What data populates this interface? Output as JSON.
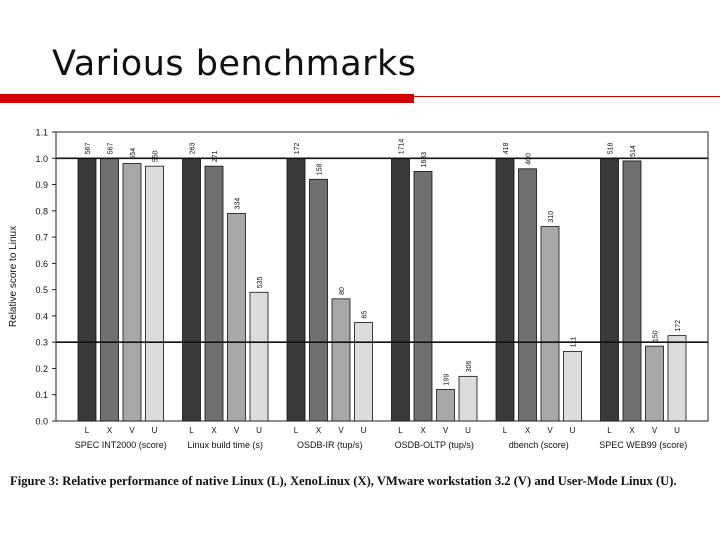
{
  "slide": {
    "title": "Various benchmarks",
    "accent_color": "#d40000"
  },
  "caption": {
    "label": "Figure 3:",
    "text": "Relative performance of native Linux (L), XenoLinux (X), VMware workstation 3.2 (V) and User-Mode Linux (U)."
  },
  "chart_data": {
    "type": "bar",
    "ylabel": "Relative score to Linux",
    "ylim": [
      0,
      1.1
    ],
    "yticks": [
      "0.0",
      "0.1",
      "0.2",
      "0.3",
      "0.4",
      "0.5",
      "0.6",
      "0.7",
      "0.8",
      "0.9",
      "1.0",
      "1.1"
    ],
    "series_letters": [
      "L",
      "X",
      "V",
      "U"
    ],
    "series_colors": [
      "#3a3a3a",
      "#707070",
      "#a8a8a8",
      "#dcdcdc"
    ],
    "reference_lines": [
      1.0,
      0.3
    ],
    "groups": [
      {
        "category": "SPEC INT2000 (score)",
        "values": [
          1.0,
          1.0,
          0.98,
          0.97
        ],
        "labels": [
          "567",
          "567",
          "554",
          "550"
        ]
      },
      {
        "category": "Linux build time (s)",
        "values": [
          1.0,
          0.97,
          0.79,
          0.49
        ],
        "labels": [
          "263",
          "271",
          "334",
          "535"
        ]
      },
      {
        "category": "OSDB-IR (tup/s)",
        "values": [
          1.0,
          0.92,
          0.465,
          0.375
        ],
        "labels": [
          "172",
          "158",
          "80",
          "65"
        ]
      },
      {
        "category": "OSDB-OLTP (tup/s)",
        "values": [
          1.0,
          0.95,
          0.12,
          0.17
        ],
        "labels": [
          "1714",
          "1633",
          "199",
          "306"
        ]
      },
      {
        "category": "dbench (score)",
        "values": [
          1.0,
          0.96,
          0.74,
          0.265
        ],
        "labels": [
          "418",
          "400",
          "310",
          "111"
        ]
      },
      {
        "category": "SPEC WEB99 (score)",
        "values": [
          1.0,
          0.99,
          0.285,
          0.325
        ],
        "labels": [
          "518",
          "514",
          "150",
          "172"
        ]
      }
    ]
  }
}
